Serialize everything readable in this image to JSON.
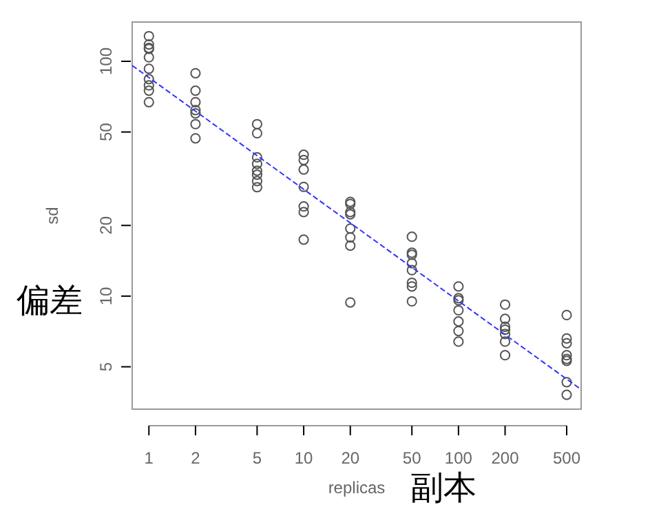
{
  "chart_data": {
    "type": "scatter",
    "xlabel": "replicas",
    "ylabel": "sd",
    "log": "xy",
    "grid": false,
    "xlim": [
      0.78,
      620
    ],
    "ylim": [
      3.3,
      147
    ],
    "xticks": [
      1,
      2,
      5,
      10,
      20,
      50,
      100,
      200,
      500
    ],
    "yticks": [
      5,
      10,
      20,
      50,
      100
    ],
    "annotations": [
      "偏差",
      "副本"
    ],
    "series": [
      {
        "marker": "circle",
        "color": "#555555",
        "x": [
          1,
          1,
          1,
          1,
          1,
          1,
          1,
          1,
          1,
          1,
          2,
          2,
          2,
          2,
          2,
          2,
          2,
          5,
          5,
          5,
          5,
          5,
          5,
          5,
          5,
          10,
          10,
          10,
          10,
          10,
          10,
          10,
          20,
          20,
          20,
          20,
          20,
          20,
          20,
          20,
          50,
          50,
          50,
          50,
          50,
          50,
          50,
          50,
          100,
          100,
          100,
          100,
          100,
          100,
          100,
          200,
          200,
          200,
          200,
          200,
          200,
          200,
          500,
          500,
          500,
          500,
          500,
          500,
          500,
          500
        ],
        "values": [
          128,
          118,
          114,
          113,
          104,
          93,
          84,
          79,
          75,
          67,
          89,
          75,
          67,
          62,
          60,
          54,
          47,
          54,
          49.4,
          39,
          36.6,
          34.2,
          32.9,
          30.9,
          29.1,
          40,
          38,
          34.6,
          29.2,
          24.1,
          22.8,
          17.4,
          25.2,
          24.7,
          22.8,
          22.3,
          19.4,
          17.8,
          16.4,
          9.4,
          17.9,
          15.3,
          15,
          13.8,
          12.9,
          11.4,
          11,
          9.5,
          11,
          9.8,
          9.6,
          8.7,
          7.8,
          7.1,
          6.4,
          9.2,
          8,
          7.4,
          7.2,
          6.9,
          6.4,
          5.6,
          8.3,
          6.6,
          6.3,
          5.6,
          5.4,
          5.3,
          4.3,
          3.8
        ]
      },
      {
        "type": "line",
        "color": "#3333ff",
        "line_style": "dashed",
        "x": [
          0.78,
          620
        ],
        "values": [
          96,
          4.0
        ]
      }
    ]
  }
}
